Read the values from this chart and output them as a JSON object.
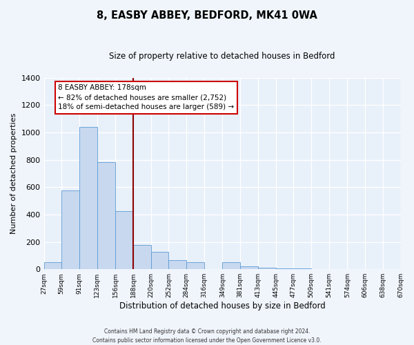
{
  "title": "8, EASBY ABBEY, BEDFORD, MK41 0WA",
  "subtitle": "Size of property relative to detached houses in Bedford",
  "xlabel": "Distribution of detached houses by size in Bedford",
  "ylabel": "Number of detached properties",
  "bar_color": "#c8d8ef",
  "bar_edge_color": "#5b9bd5",
  "background_color": "#e8f0fa",
  "grid_color": "#ffffff",
  "bins": [
    27,
    59,
    91,
    123,
    156,
    188,
    220,
    252,
    284,
    316,
    349,
    381,
    413,
    445,
    477,
    509,
    541,
    574,
    606,
    638,
    670
  ],
  "counts": [
    50,
    575,
    1040,
    785,
    425,
    178,
    125,
    65,
    50,
    0,
    50,
    22,
    12,
    5,
    5,
    0,
    0,
    0,
    0,
    0
  ],
  "tick_labels": [
    "27sqm",
    "59sqm",
    "91sqm",
    "123sqm",
    "156sqm",
    "188sqm",
    "220sqm",
    "252sqm",
    "284sqm",
    "316sqm",
    "349sqm",
    "381sqm",
    "413sqm",
    "445sqm",
    "477sqm",
    "509sqm",
    "541sqm",
    "574sqm",
    "606sqm",
    "638sqm",
    "670sqm"
  ],
  "vline_x": 188,
  "vline_color": "#8b0000",
  "ylim": [
    0,
    1400
  ],
  "yticks": [
    0,
    200,
    400,
    600,
    800,
    1000,
    1200,
    1400
  ],
  "annotation_title": "8 EASBY ABBEY: 178sqm",
  "annotation_line1": "← 82% of detached houses are smaller (2,752)",
  "annotation_line2": "18% of semi-detached houses are larger (589) →",
  "annotation_box_color": "#ffffff",
  "annotation_box_edge": "#cc0000",
  "footer_line1": "Contains HM Land Registry data © Crown copyright and database right 2024.",
  "footer_line2": "Contains public sector information licensed under the Open Government Licence v3.0.",
  "fig_width": 6.0,
  "fig_height": 5.0,
  "fig_dpi": 100
}
